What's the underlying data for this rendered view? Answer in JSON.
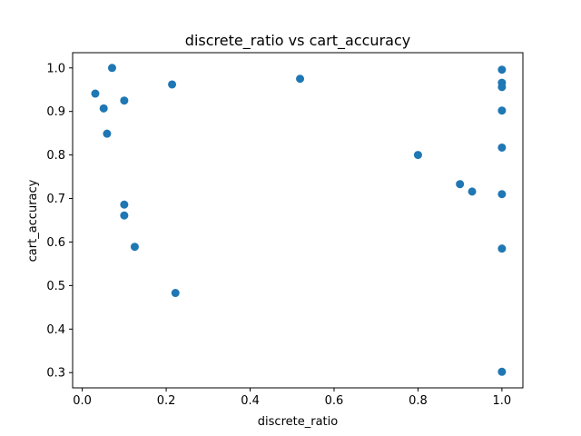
{
  "chart_data": {
    "type": "scatter",
    "title": "discrete_ratio vs cart_accuracy",
    "xlabel": "discrete_ratio",
    "ylabel": "cart_accuracy",
    "xlim": [
      -0.023,
      1.05
    ],
    "ylim": [
      0.265,
      1.035
    ],
    "xticks": [
      0.0,
      0.2,
      0.4,
      0.6,
      0.8,
      1.0
    ],
    "xtick_labels": [
      "0.0",
      "0.2",
      "0.4",
      "0.6",
      "0.8",
      "1.0"
    ],
    "yticks": [
      0.3,
      0.4,
      0.5,
      0.6,
      0.7,
      0.8,
      0.9,
      1.0
    ],
    "ytick_labels": [
      "0.3",
      "0.4",
      "0.5",
      "0.6",
      "0.7",
      "0.8",
      "0.9",
      "1.0"
    ],
    "grid": false,
    "marker_color": "#1f77b4",
    "points": [
      {
        "x": 0.031,
        "y": 0.941
      },
      {
        "x": 0.051,
        "y": 0.907
      },
      {
        "x": 0.059,
        "y": 0.849
      },
      {
        "x": 0.071,
        "y": 1.0
      },
      {
        "x": 0.1,
        "y": 0.925
      },
      {
        "x": 0.1,
        "y": 0.686
      },
      {
        "x": 0.1,
        "y": 0.661
      },
      {
        "x": 0.125,
        "y": 0.589
      },
      {
        "x": 0.214,
        "y": 0.962
      },
      {
        "x": 0.222,
        "y": 0.483
      },
      {
        "x": 0.519,
        "y": 0.975
      },
      {
        "x": 0.8,
        "y": 0.8
      },
      {
        "x": 0.9,
        "y": 0.733
      },
      {
        "x": 0.929,
        "y": 0.716
      },
      {
        "x": 1.0,
        "y": 0.996
      },
      {
        "x": 1.0,
        "y": 0.966
      },
      {
        "x": 1.0,
        "y": 0.956
      },
      {
        "x": 1.0,
        "y": 0.902
      },
      {
        "x": 1.0,
        "y": 0.817
      },
      {
        "x": 1.0,
        "y": 0.71
      },
      {
        "x": 1.0,
        "y": 0.585
      },
      {
        "x": 1.0,
        "y": 0.302
      }
    ]
  }
}
